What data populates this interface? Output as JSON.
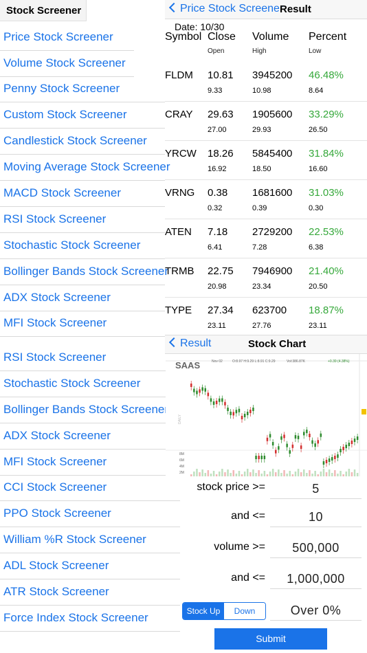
{
  "menu": {
    "title": "Stock Screener",
    "items": [
      "Price Stock Screener",
      "Volume Stock Screener",
      "Penny Stock Screener",
      "Custom Stock Screener",
      "Candlestick Stock Screener",
      "Moving Average Stock Screener",
      "MACD Stock Screener",
      "RSI Stock Screener",
      "Stochastic Stock Screener",
      "Bollinger Bands Stock Screener",
      "ADX Stock Screener",
      "MFI Stock Screener",
      "RSI Stock Screener",
      "Stochastic Stock Screener",
      "Bollinger Bands Stock Screener",
      "ADX Stock Screener",
      "MFI Stock Screener",
      "CCI Stock Screener",
      "PPO Stock Screener",
      "William %R Stock Screener",
      "ADL Stock Screener",
      "ATR Stock Screener",
      "Force Index Stock Screener"
    ]
  },
  "result": {
    "back_label": "Price Stock Screener",
    "title": "Result",
    "date": "Date: 10/30",
    "headers": {
      "symbol": "Symbol",
      "close": "Close",
      "volume": "Volume",
      "percent": "Percent",
      "open": "Open",
      "high": "High",
      "low": "Low"
    },
    "rows": [
      {
        "symbol": "FLDM",
        "close": "10.81",
        "volume": "3945200",
        "percent": "46.48%",
        "open": "9.33",
        "high": "10.98",
        "low": "8.64"
      },
      {
        "symbol": "CRAY",
        "close": "29.63",
        "volume": "1905600",
        "percent": "33.29%",
        "open": "27.00",
        "high": "29.93",
        "low": "26.50"
      },
      {
        "symbol": "YRCW",
        "close": "18.26",
        "volume": "5845400",
        "percent": "31.84%",
        "open": "16.92",
        "high": "18.50",
        "low": "16.60"
      },
      {
        "symbol": "VRNG",
        "close": "0.38",
        "volume": "1681600",
        "percent": "31.03%",
        "open": "0.32",
        "high": "0.39",
        "low": "0.30"
      },
      {
        "symbol": "ATEN",
        "close": "7.18",
        "volume": "2729200",
        "percent": "22.53%",
        "open": "6.41",
        "high": "7.28",
        "low": "6.38"
      },
      {
        "symbol": "TRMB",
        "close": "22.75",
        "volume": "7946900",
        "percent": "21.40%",
        "open": "20.98",
        "high": "23.34",
        "low": "20.50"
      },
      {
        "symbol": "TYPE",
        "close": "27.34",
        "volume": "623700",
        "percent": "18.87%",
        "open": "23.11",
        "high": "27.76",
        "low": "23.11"
      }
    ]
  },
  "chart": {
    "back_label": "Result",
    "title": "Stock Chart",
    "symbol": "SAAS",
    "info": "Nov 02",
    "ohlc": "O:8.97  H:9.29  L:8.91  C:9.29",
    "vol": "Vol:386.87K",
    "change": "+0.39 (4.38%)",
    "side_label": "DAILY",
    "vol_ticks": [
      "8M",
      "6M",
      "4M",
      "2M"
    ]
  },
  "form": {
    "price_min_label": "stock price >=",
    "price_min": "5",
    "price_max_label": "and <=",
    "price_max": "10",
    "vol_min_label": "volume >=",
    "vol_min": "500,000",
    "vol_max_label": "and <=",
    "vol_max": "1,000,000",
    "seg_up": "Stock Up",
    "seg_down": "Down",
    "percent_value": "Over 0%",
    "submit": "Submit"
  },
  "colors": {
    "accent": "#1a73e8",
    "gain": "#35a83a",
    "candle_up": "#2e8b2e",
    "candle_down": "#d32f2f"
  }
}
